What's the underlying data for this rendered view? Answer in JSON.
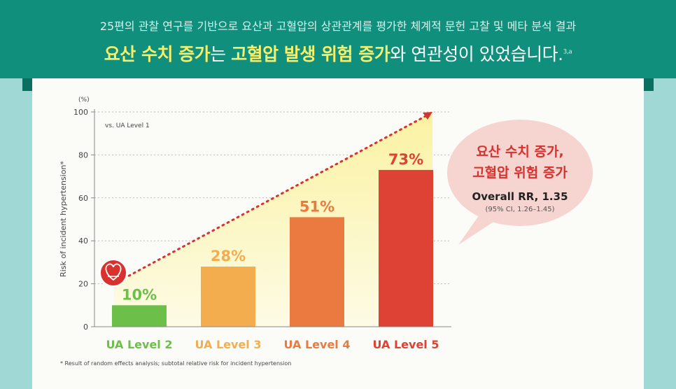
{
  "header": {
    "subtitle": "25편의 관찰 연구를 기반으로 요산과 고혈압의 상관관계를 평가한 체계적 문헌 고찰 및 메타 분석 결과",
    "headline_hl1": "요산 수치 증가",
    "headline_t1": "는 ",
    "headline_hl2": "고혈압 발생 위험 증가",
    "headline_t2": "와 연관성이 있었습니다.",
    "headline_ref": "3,a"
  },
  "chart_data": {
    "type": "bar",
    "categories": [
      "UA Level 2",
      "UA Level 3",
      "UA Level 4",
      "UA Level 5"
    ],
    "values": [
      10,
      28,
      51,
      73
    ],
    "value_labels": [
      "10%",
      "28%",
      "51%",
      "73%"
    ],
    "colors": [
      "#6cc04a",
      "#f3ad4f",
      "#ea7a3f",
      "#de4235"
    ],
    "ylabel": "Risk of incident hypertension*",
    "yunit": "(%)",
    "ylim": [
      0,
      100
    ],
    "yticks": [
      "0",
      "20",
      "40",
      "60",
      "80",
      "100"
    ],
    "annotation": "vs. UA Level 1",
    "trend_from": 20,
    "trend_to": 100
  },
  "callout": {
    "title1": "요산 수치 증가,",
    "title2": "고혈압 위험 증가",
    "rr": "Overall RR, 1.35",
    "ci": "(95% CI, 1.26–1.45)"
  },
  "footnote": "* Result of random effects analysis; subtotal relative risk for incident hypertension"
}
